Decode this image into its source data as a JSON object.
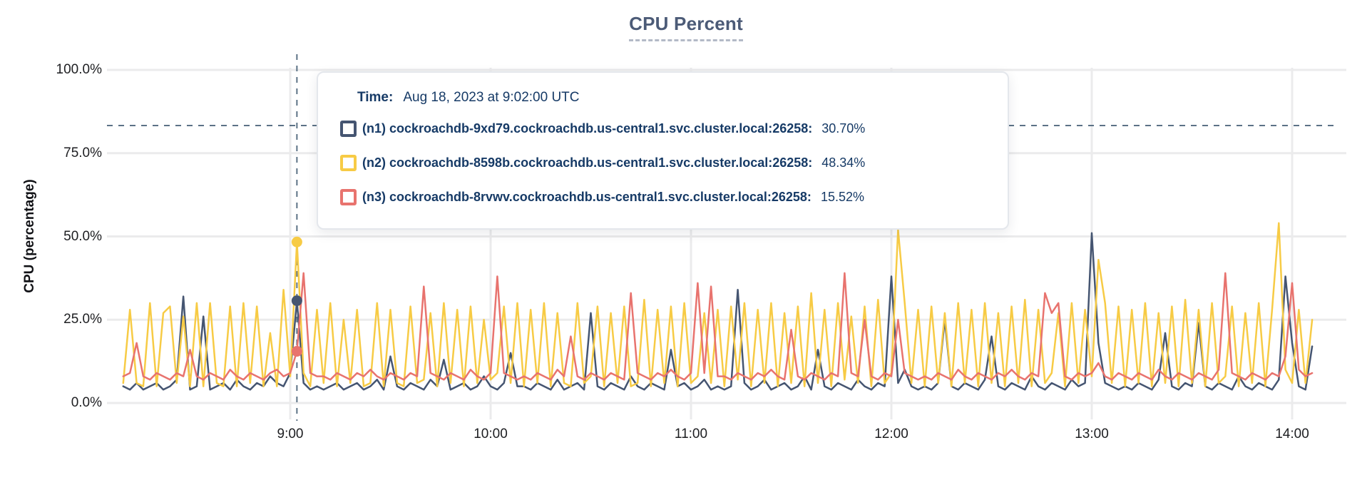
{
  "title": "CPU Percent",
  "y_axis": {
    "label": "CPU (percentage)",
    "ticks": [
      "0.0%",
      "25.0%",
      "50.0%",
      "75.0%",
      "100.0%"
    ]
  },
  "x_axis": {
    "ticks": [
      "9:00",
      "10:00",
      "11:00",
      "12:00",
      "13:00",
      "14:00"
    ]
  },
  "tooltip": {
    "time_label": "Time:",
    "time_value": "Aug 18, 2023 at 9:02:00 UTC",
    "rows": [
      {
        "label": "(n1) cockroachdb-9xd79.cockroachdb.us-central1.svc.cluster.local:26258:",
        "value": "30.70%",
        "color": "#455571"
      },
      {
        "label": "(n2) cockroachdb-8598b.cockroachdb.us-central1.svc.cluster.local:26258:",
        "value": "48.34%",
        "color": "#f7cb45"
      },
      {
        "label": "(n3) cockroachdb-8rvwv.cockroachdb.us-central1.svc.cluster.local:26258:",
        "value": "15.52%",
        "color": "#e8736e"
      }
    ]
  },
  "colors": {
    "n1": "#455571",
    "n2": "#f7cb45",
    "n3": "#e8736e",
    "crosshair": "#5c7286",
    "gridline": "#ebebec",
    "title": "#4c5b77",
    "tooltip_text": "#163a66"
  },
  "chart_data": {
    "type": "line",
    "title": "CPU Percent",
    "ylabel": "CPU (percentage)",
    "ylim": [
      0,
      100
    ],
    "y_tick_percents": [
      0,
      25,
      50,
      75,
      100
    ],
    "x_tick_hours": [
      "9:00",
      "10:00",
      "11:00",
      "12:00",
      "13:00",
      "14:00"
    ],
    "grid": true,
    "legend_position": "tooltip-overlay",
    "t_origin": "8:00 UTC, minutes",
    "t_start_minutes": 10,
    "t_step_minutes": 2,
    "hover": {
      "t_minutes": 62,
      "time": "Aug 18, 2023 at 9:02:00 UTC",
      "values": [
        30.7,
        48.34,
        15.52
      ],
      "crosshair_y_percent": 83.3
    },
    "series": [
      {
        "name": "(n1) cockroachdb-9xd79.cockroachdb.us-central1.svc.cluster.local:26258",
        "color": "#455571",
        "values": [
          5,
          4,
          6,
          4,
          5,
          6,
          4,
          5,
          7,
          32,
          4,
          5,
          26,
          4,
          5,
          6,
          4,
          7,
          5,
          4,
          6,
          5,
          8,
          6,
          5,
          9,
          30.7,
          6,
          4,
          5,
          4,
          5,
          6,
          4,
          5,
          6,
          4,
          5,
          7,
          4,
          14,
          5,
          4,
          6,
          5,
          4,
          7,
          5,
          13,
          4,
          5,
          6,
          4,
          5,
          8,
          5,
          4,
          6,
          15,
          5,
          5,
          4,
          6,
          5,
          4,
          7,
          4,
          5,
          6,
          4,
          27,
          5,
          4,
          6,
          5,
          4,
          8,
          5,
          4,
          6,
          5,
          4,
          16,
          5,
          6,
          4,
          5,
          7,
          4,
          5,
          4,
          5,
          34,
          6,
          4,
          5,
          7,
          4,
          5,
          6,
          4,
          5,
          8,
          4,
          16,
          5,
          4,
          6,
          5,
          4,
          7,
          5,
          4,
          6,
          5,
          38,
          6,
          10,
          5,
          4,
          5,
          4,
          6,
          25,
          5,
          4,
          6,
          5,
          4,
          7,
          20,
          5,
          4,
          6,
          5,
          4,
          8,
          5,
          4,
          6,
          5,
          4,
          7,
          5,
          6,
          51,
          18,
          6,
          5,
          4,
          5,
          4,
          6,
          5,
          4,
          7,
          21,
          5,
          4,
          6,
          5,
          24,
          5,
          4,
          6,
          5,
          4,
          8,
          5,
          4,
          6,
          5,
          4,
          7,
          38,
          18,
          5,
          4,
          17
        ]
      },
      {
        "name": "(n2) cockroachdb-8598b.cockroachdb.us-central1.svc.cluster.local:26258",
        "color": "#f7cb45",
        "values": [
          6,
          28,
          6,
          5,
          30,
          5,
          27,
          29,
          6,
          26,
          5,
          30,
          5,
          30,
          6,
          5,
          29,
          5,
          30,
          6,
          29,
          5,
          21,
          5,
          34,
          8,
          48.34,
          9,
          5,
          28,
          6,
          30,
          5,
          25,
          6,
          28,
          5,
          6,
          30,
          5,
          28,
          6,
          5,
          29,
          6,
          7,
          27,
          5,
          30,
          6,
          28,
          5,
          29,
          6,
          25,
          7,
          9,
          29,
          6,
          30,
          5,
          28,
          6,
          30,
          5,
          27,
          6,
          5,
          30,
          6,
          8,
          29,
          5,
          27,
          6,
          29,
          5,
          6,
          31,
          5,
          28,
          6,
          29,
          5,
          30,
          6,
          8,
          27,
          6,
          28,
          5,
          29,
          7,
          30,
          5,
          28,
          6,
          30,
          5,
          27,
          6,
          29,
          5,
          33,
          6,
          28,
          5,
          30,
          7,
          26,
          6,
          29,
          5,
          31,
          6,
          9,
          52,
          30,
          6,
          28,
          5,
          29,
          6,
          27,
          5,
          30,
          6,
          28,
          5,
          30,
          6,
          27,
          5,
          29,
          6,
          31,
          5,
          28,
          6,
          9,
          27,
          5,
          30,
          6,
          28,
          8,
          43,
          30,
          6,
          29,
          5,
          28,
          6,
          30,
          5,
          27,
          6,
          29,
          5,
          31,
          6,
          28,
          5,
          30,
          6,
          8,
          29,
          5,
          27,
          6,
          30,
          5,
          28,
          54,
          10,
          6,
          28,
          6,
          25
        ]
      },
      {
        "name": "(n3) cockroachdb-8rvwv.cockroachdb.us-central1.svc.cluster.local:26258",
        "color": "#e8736e",
        "values": [
          8,
          9,
          18,
          8,
          7,
          9,
          8,
          7,
          9,
          8,
          16,
          8,
          7,
          9,
          8,
          7,
          10,
          8,
          7,
          9,
          8,
          7,
          9,
          10,
          8,
          9,
          15.52,
          39,
          9,
          8,
          8,
          7,
          9,
          8,
          7,
          9,
          8,
          10,
          8,
          7,
          9,
          8,
          7,
          9,
          8,
          35,
          9,
          8,
          7,
          9,
          8,
          7,
          10,
          8,
          7,
          9,
          38,
          9,
          8,
          7,
          8,
          7,
          9,
          8,
          7,
          10,
          8,
          20,
          8,
          7,
          9,
          8,
          7,
          9,
          8,
          7,
          33,
          9,
          8,
          7,
          9,
          8,
          10,
          8,
          7,
          9,
          36,
          9,
          35,
          8,
          8,
          7,
          9,
          8,
          7,
          9,
          8,
          10,
          8,
          7,
          22,
          8,
          7,
          9,
          8,
          7,
          9,
          8,
          39,
          9,
          8,
          25,
          8,
          7,
          9,
          8,
          25,
          9,
          8,
          7,
          8,
          7,
          9,
          8,
          7,
          10,
          8,
          7,
          9,
          8,
          7,
          9,
          8,
          10,
          8,
          7,
          9,
          8,
          33,
          27,
          30,
          8,
          7,
          9,
          8,
          9,
          12,
          8,
          7,
          9,
          8,
          7,
          9,
          8,
          7,
          10,
          8,
          7,
          9,
          8,
          7,
          9,
          8,
          7,
          10,
          39,
          9,
          8,
          7,
          9,
          8,
          7,
          9,
          8,
          14,
          36,
          10,
          8,
          9
        ]
      }
    ]
  }
}
